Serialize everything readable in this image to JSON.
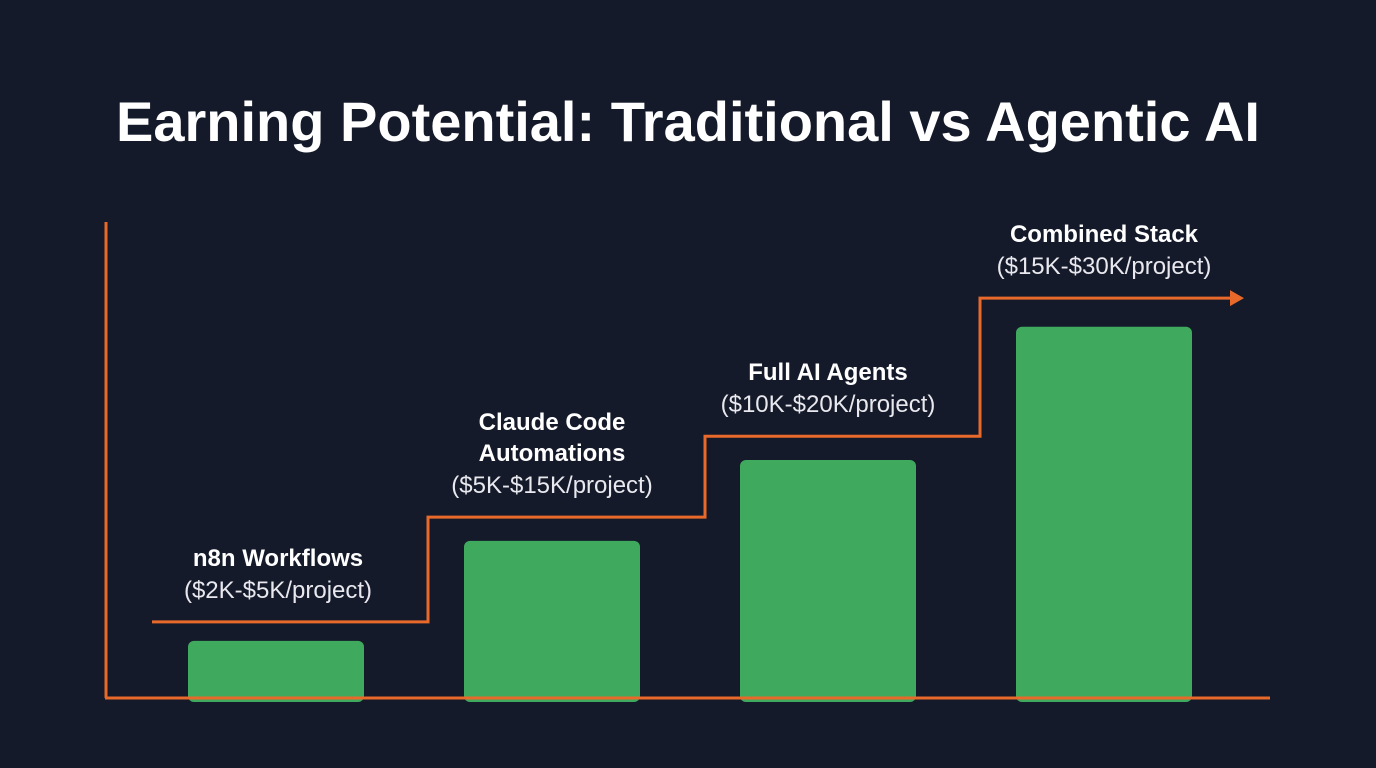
{
  "chart_data": {
    "type": "bar",
    "title": "Earning Potential: Traditional vs Agentic AI",
    "xlabel": "",
    "ylabel": "",
    "ylim": [
      0,
      100
    ],
    "grid": false,
    "categories": [
      {
        "name": "n8n Workflows",
        "lines": [
          "n8n Workflows"
        ],
        "range": "($2K-$5K/project)"
      },
      {
        "name": "Claude Code Automations",
        "lines": [
          "Claude Code",
          "Automations"
        ],
        "range": "($5K-$15K/project)"
      },
      {
        "name": "Full AI Agents",
        "lines": [
          "Full AI Agents"
        ],
        "range": "($10K-$20K/project)"
      },
      {
        "name": "Combined Stack",
        "lines": [
          "Combined Stack"
        ],
        "range": "($15K-$30K/project)"
      }
    ],
    "values": [
      12,
      33,
      50,
      78
    ],
    "step_line": {
      "values": [
        16,
        38,
        55,
        84
      ],
      "arrow": true
    },
    "colors": {
      "background": "#141a2a",
      "bar": "#3faa5e",
      "axis": "#e8692a",
      "text": "#ffffff"
    }
  }
}
